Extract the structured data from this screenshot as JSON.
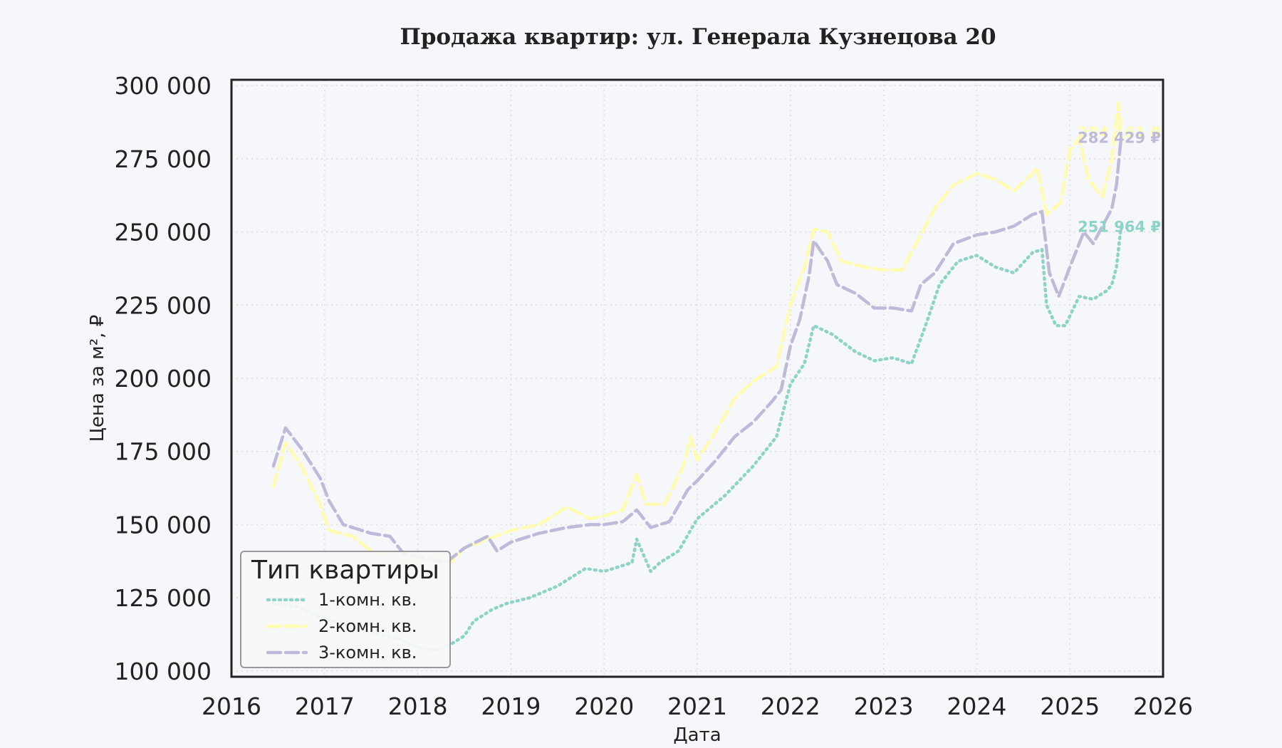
{
  "chart_data": {
    "type": "line",
    "title": "Продажа квартир: ул. Генерала Кузнецова 20",
    "xlabel": "Дата",
    "ylabel": "Цена за м², ₽",
    "xlim": [
      2016,
      2026
    ],
    "ylim": [
      98000,
      302000
    ],
    "x_ticks": [
      "2016",
      "2017",
      "2018",
      "2019",
      "2020",
      "2021",
      "2022",
      "2023",
      "2024",
      "2025",
      "2026"
    ],
    "y_ticks": [
      "100 000",
      "125 000",
      "150 000",
      "175 000",
      "200 000",
      "225 000",
      "250 000",
      "275 000",
      "300 000"
    ],
    "grid": true,
    "legend": {
      "title": "Тип квартиры",
      "placement": "lower-left"
    },
    "series": [
      {
        "name": "1-комн. кв.",
        "color": "#8dd3c7",
        "style": "dotted",
        "end_label": "251 964 ₽",
        "points": [
          [
            2016.45,
            123000
          ],
          [
            2016.7,
            122000
          ],
          [
            2016.9,
            119000
          ],
          [
            2017.2,
            116000
          ],
          [
            2017.5,
            113000
          ],
          [
            2017.8,
            111000
          ],
          [
            2018.0,
            108000
          ],
          [
            2018.2,
            107000
          ],
          [
            2018.35,
            109000
          ],
          [
            2018.5,
            112000
          ],
          [
            2018.6,
            117000
          ],
          [
            2018.8,
            121000
          ],
          [
            2018.95,
            123000
          ],
          [
            2019.2,
            125000
          ],
          [
            2019.5,
            129000
          ],
          [
            2019.8,
            135000
          ],
          [
            2020.0,
            134000
          ],
          [
            2020.3,
            137000
          ],
          [
            2020.35,
            145000
          ],
          [
            2020.5,
            134000
          ],
          [
            2020.6,
            137000
          ],
          [
            2020.8,
            141000
          ],
          [
            2021.0,
            152000
          ],
          [
            2021.3,
            160000
          ],
          [
            2021.6,
            170000
          ],
          [
            2021.85,
            180000
          ],
          [
            2022.0,
            198000
          ],
          [
            2022.15,
            205000
          ],
          [
            2022.25,
            218000
          ],
          [
            2022.45,
            215000
          ],
          [
            2022.7,
            209000
          ],
          [
            2022.9,
            206000
          ],
          [
            2023.1,
            207000
          ],
          [
            2023.3,
            205000
          ],
          [
            2023.45,
            218000
          ],
          [
            2023.6,
            232000
          ],
          [
            2023.8,
            240000
          ],
          [
            2024.0,
            242000
          ],
          [
            2024.2,
            238000
          ],
          [
            2024.4,
            236000
          ],
          [
            2024.6,
            243000
          ],
          [
            2024.7,
            244000
          ],
          [
            2024.75,
            225000
          ],
          [
            2024.85,
            218000
          ],
          [
            2024.95,
            218000
          ],
          [
            2025.1,
            228000
          ],
          [
            2025.25,
            227000
          ],
          [
            2025.4,
            230000
          ],
          [
            2025.45,
            232000
          ],
          [
            2025.5,
            238000
          ],
          [
            2025.55,
            251964
          ]
        ]
      },
      {
        "name": "2-комн. кв.",
        "color": "#fffcb0",
        "style": "dashed",
        "end_label": "284 161 ₽",
        "points": [
          [
            2016.45,
            163000
          ],
          [
            2016.58,
            178000
          ],
          [
            2016.75,
            170000
          ],
          [
            2016.95,
            157000
          ],
          [
            2017.05,
            148000
          ],
          [
            2017.3,
            146000
          ],
          [
            2017.5,
            141000
          ],
          [
            2017.8,
            138000
          ],
          [
            2018.0,
            137000
          ],
          [
            2018.2,
            139000
          ],
          [
            2018.35,
            137000
          ],
          [
            2018.5,
            142000
          ],
          [
            2018.75,
            145000
          ],
          [
            2019.0,
            148000
          ],
          [
            2019.3,
            150000
          ],
          [
            2019.6,
            156000
          ],
          [
            2019.85,
            152000
          ],
          [
            2020.0,
            153000
          ],
          [
            2020.2,
            155000
          ],
          [
            2020.35,
            167000
          ],
          [
            2020.45,
            157000
          ],
          [
            2020.65,
            157000
          ],
          [
            2020.85,
            170000
          ],
          [
            2020.93,
            180000
          ],
          [
            2021.0,
            172000
          ],
          [
            2021.2,
            182000
          ],
          [
            2021.4,
            193000
          ],
          [
            2021.6,
            199000
          ],
          [
            2021.85,
            204000
          ],
          [
            2022.0,
            225000
          ],
          [
            2022.15,
            238000
          ],
          [
            2022.25,
            251000
          ],
          [
            2022.4,
            250000
          ],
          [
            2022.55,
            240000
          ],
          [
            2022.8,
            238000
          ],
          [
            2023.0,
            237000
          ],
          [
            2023.2,
            237000
          ],
          [
            2023.4,
            249000
          ],
          [
            2023.55,
            258000
          ],
          [
            2023.75,
            266000
          ],
          [
            2024.0,
            270000
          ],
          [
            2024.2,
            268000
          ],
          [
            2024.4,
            264000
          ],
          [
            2024.6,
            270000
          ],
          [
            2024.65,
            272000
          ],
          [
            2024.75,
            256000
          ],
          [
            2024.9,
            260000
          ],
          [
            2025.0,
            278000
          ],
          [
            2025.1,
            282000
          ],
          [
            2025.2,
            268000
          ],
          [
            2025.35,
            262000
          ],
          [
            2025.45,
            275000
          ],
          [
            2025.52,
            294000
          ],
          [
            2025.55,
            284161
          ]
        ]
      },
      {
        "name": "3-комн. кв.",
        "color": "#bebada",
        "style": "dashed",
        "end_label": "282 429 ₽",
        "points": [
          [
            2016.45,
            170000
          ],
          [
            2016.58,
            183000
          ],
          [
            2016.75,
            176000
          ],
          [
            2016.95,
            166000
          ],
          [
            2017.05,
            158000
          ],
          [
            2017.2,
            150000
          ],
          [
            2017.5,
            147000
          ],
          [
            2017.7,
            146000
          ],
          [
            2017.85,
            140000
          ],
          [
            2018.0,
            139000
          ],
          [
            2018.3,
            137000
          ],
          [
            2018.5,
            142000
          ],
          [
            2018.75,
            146000
          ],
          [
            2018.85,
            141000
          ],
          [
            2019.0,
            144000
          ],
          [
            2019.3,
            147000
          ],
          [
            2019.6,
            149000
          ],
          [
            2019.85,
            150000
          ],
          [
            2020.0,
            150000
          ],
          [
            2020.2,
            151000
          ],
          [
            2020.35,
            155000
          ],
          [
            2020.5,
            149000
          ],
          [
            2020.7,
            151000
          ],
          [
            2020.9,
            162000
          ],
          [
            2021.0,
            165000
          ],
          [
            2021.2,
            172000
          ],
          [
            2021.4,
            180000
          ],
          [
            2021.6,
            185000
          ],
          [
            2021.8,
            192000
          ],
          [
            2021.9,
            196000
          ],
          [
            2022.0,
            211000
          ],
          [
            2022.1,
            220000
          ],
          [
            2022.2,
            235000
          ],
          [
            2022.25,
            247000
          ],
          [
            2022.4,
            240000
          ],
          [
            2022.5,
            232000
          ],
          [
            2022.7,
            229000
          ],
          [
            2022.9,
            224000
          ],
          [
            2023.1,
            224000
          ],
          [
            2023.3,
            223000
          ],
          [
            2023.4,
            232000
          ],
          [
            2023.55,
            236000
          ],
          [
            2023.75,
            246000
          ],
          [
            2024.0,
            249000
          ],
          [
            2024.2,
            250000
          ],
          [
            2024.4,
            252000
          ],
          [
            2024.6,
            256000
          ],
          [
            2024.7,
            257000
          ],
          [
            2024.78,
            236000
          ],
          [
            2024.88,
            228000
          ],
          [
            2025.0,
            238000
          ],
          [
            2025.15,
            250000
          ],
          [
            2025.25,
            246000
          ],
          [
            2025.35,
            252000
          ],
          [
            2025.45,
            258000
          ],
          [
            2025.5,
            266000
          ],
          [
            2025.55,
            282429
          ]
        ]
      }
    ]
  }
}
